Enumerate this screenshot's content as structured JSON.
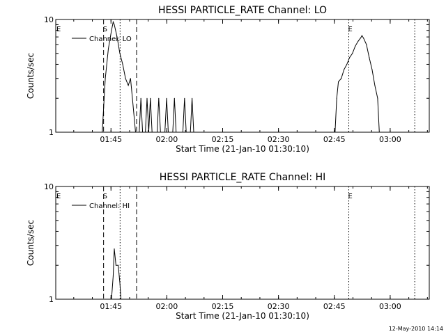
{
  "chart_data": [
    {
      "type": "line",
      "title": "HESSI PARTICLE_RATE Channel: LO",
      "xlabel": "Start Time (21-Jan-10 01:30:10)",
      "ylabel": "Counts/sec",
      "y_scale": "log",
      "ylim": [
        1,
        10
      ],
      "y_ticks": [
        {
          "v": 1,
          "label": "1"
        },
        {
          "v": 10,
          "label": "10"
        }
      ],
      "xlim": [
        "01:30:10",
        "03:10:30"
      ],
      "x_ticks": [
        "01:45",
        "02:00",
        "02:15",
        "02:30",
        "02:45",
        "03:00"
      ],
      "legend": {
        "label": "Channel: LO",
        "position": "top-left"
      },
      "series": [
        {
          "name": "Channel: LO",
          "points": [
            [
              "01:42:39",
              1
            ],
            [
              "01:43:28",
              3.0
            ],
            [
              "01:44:18",
              5.5
            ],
            [
              "01:45:08",
              8.0
            ],
            [
              "01:45:35",
              9.5
            ],
            [
              "01:45:53",
              9.0
            ],
            [
              "01:46:38",
              7.0
            ],
            [
              "01:47:23",
              5.0
            ],
            [
              "01:48:09",
              4.0
            ],
            [
              "01:48:54",
              3.0
            ],
            [
              "01:49:39",
              2.6
            ],
            [
              "01:50:15",
              3.0
            ],
            [
              "01:50:46",
              2.0
            ],
            [
              "01:51:36",
              1
            ],
            [
              "01:52:35",
              1
            ],
            [
              "01:53:02",
              2.0
            ],
            [
              "01:53:29",
              1
            ],
            [
              "01:54:14",
              1
            ],
            [
              "01:54:41",
              2.0
            ],
            [
              "01:55:08",
              1
            ],
            [
              "01:55:35",
              2.0
            ],
            [
              "01:56:02",
              1
            ],
            [
              "01:57:24",
              1
            ],
            [
              "01:57:50",
              2.0
            ],
            [
              "01:58:18",
              1
            ],
            [
              "01:59:29",
              1
            ],
            [
              "01:59:57",
              2.0
            ],
            [
              "02:00:24",
              1
            ],
            [
              "02:01:36",
              1
            ],
            [
              "02:02:03",
              2.0
            ],
            [
              "02:02:30",
              1
            ],
            [
              "02:04:19",
              1
            ],
            [
              "02:04:46",
              2.0
            ],
            [
              "02:05:13",
              1
            ],
            [
              "02:06:20",
              1
            ],
            [
              "02:06:47",
              2.0
            ],
            [
              "02:07:14",
              1
            ],
            [
              "02:45:11",
              1
            ],
            [
              "02:45:38",
              2.0
            ],
            [
              "02:46:05",
              2.8
            ],
            [
              "02:46:51",
              3.0
            ],
            [
              "02:47:36",
              3.6
            ],
            [
              "02:48:21",
              4.0
            ],
            [
              "02:49:06",
              4.6
            ],
            [
              "02:49:51",
              5.0
            ],
            [
              "02:50:37",
              5.8
            ],
            [
              "02:51:22",
              6.4
            ],
            [
              "02:52:07",
              6.9
            ],
            [
              "02:52:25",
              7.2
            ],
            [
              "02:52:52",
              6.8
            ],
            [
              "02:53:37",
              6.0
            ],
            [
              "02:54:22",
              4.6
            ],
            [
              "02:55:08",
              3.6
            ],
            [
              "02:55:53",
              2.6
            ],
            [
              "02:56:38",
              2.0
            ],
            [
              "02:57:05",
              1
            ]
          ]
        }
      ],
      "markers": [
        {
          "label": "E",
          "x": "01:30:10",
          "style": "none"
        },
        {
          "label": "S",
          "x": "01:43:01",
          "style": "dashed"
        },
        {
          "label": "",
          "x": "01:47:27",
          "style": "dotted"
        },
        {
          "label": "",
          "x": "01:51:53",
          "style": "dashed"
        },
        {
          "label": "E",
          "x": "02:48:53",
          "style": "dotted"
        },
        {
          "label": "",
          "x": "03:06:36",
          "style": "dotted"
        }
      ]
    },
    {
      "type": "line",
      "title": "HESSI PARTICLE_RATE Channel: HI",
      "xlabel": "Start Time (21-Jan-10 01:30:10)",
      "ylabel": "Counts/sec",
      "y_scale": "log",
      "ylim": [
        1,
        10
      ],
      "y_ticks": [
        {
          "v": 1,
          "label": "1"
        },
        {
          "v": 10,
          "label": "10"
        }
      ],
      "xlim": [
        "01:30:10",
        "03:10:30"
      ],
      "x_ticks": [
        "01:45",
        "02:00",
        "02:15",
        "02:30",
        "02:45",
        "03:00"
      ],
      "legend": {
        "label": "Channel: HI",
        "position": "top-left"
      },
      "series": [
        {
          "name": "Channel: HI",
          "points": [
            [
              "01:45:08",
              1
            ],
            [
              "01:45:35",
              1.6
            ],
            [
              "01:45:53",
              2.8
            ],
            [
              "01:46:20",
              2.0
            ],
            [
              "01:46:56",
              2.0
            ],
            [
              "01:47:23",
              1.4
            ],
            [
              "01:47:41",
              1
            ]
          ]
        }
      ],
      "markers": [
        {
          "label": "E",
          "x": "01:30:10",
          "style": "none"
        },
        {
          "label": "S",
          "x": "01:43:01",
          "style": "dashed"
        },
        {
          "label": "",
          "x": "01:47:27",
          "style": "dotted"
        },
        {
          "label": "",
          "x": "01:51:53",
          "style": "dashed"
        },
        {
          "label": "E",
          "x": "02:48:53",
          "style": "dotted"
        },
        {
          "label": "",
          "x": "03:06:36",
          "style": "dotted"
        }
      ]
    }
  ],
  "footer": {
    "timestamp": "12-May-2010 14:14"
  }
}
